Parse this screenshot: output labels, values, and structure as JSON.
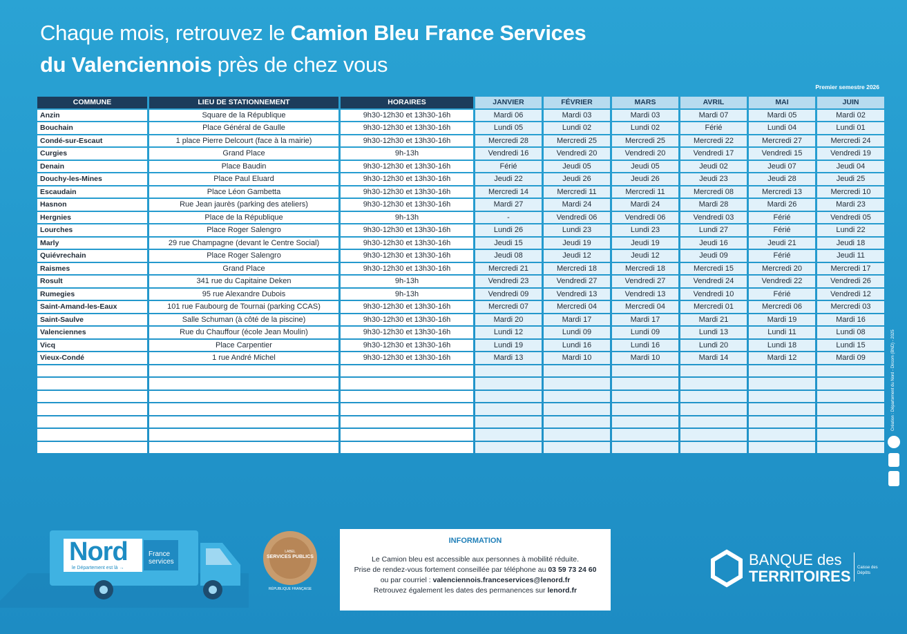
{
  "header": {
    "title_line1_regular": "Chaque mois, retrouvez le",
    "title_line1_bold": "Camion Bleu France Services",
    "title_line2_bold": "du Valenciennois",
    "title_line2_regular": "près de chez vous",
    "period": "Premier semestre 2026"
  },
  "table": {
    "columns": [
      "COMMUNE",
      "LIEU DE STATIONNEMENT",
      "HORAIRES",
      "JANVIER",
      "FÉVRIER",
      "MARS",
      "AVRIL",
      "MAI",
      "JUIN"
    ],
    "rows": [
      [
        "Anzin",
        "Square de la République",
        "9h30-12h30 et 13h30-16h",
        "Mardi 06",
        "Mardi 03",
        "Mardi 03",
        "Mardi 07",
        "Mardi 05",
        "Mardi 02"
      ],
      [
        "Bouchain",
        "Place Général de Gaulle",
        "9h30-12h30 et 13h30-16h",
        "Lundi 05",
        "Lundi 02",
        "Lundi 02",
        "Férié",
        "Lundi 04",
        "Lundi 01"
      ],
      [
        "Condé-sur-Escaut",
        "1 place Pierre Delcourt (face à la mairie)",
        "9h30-12h30 et 13h30-16h",
        "Mercredi 28",
        "Mercredi 25",
        "Mercredi 25",
        "Mercredi 22",
        "Mercredi 27",
        "Mercredi 24"
      ],
      [
        "Curgies",
        "Grand Place",
        "9h-13h",
        "Vendredi 16",
        "Vendredi 20",
        "Vendredi 20",
        "Vendredi 17",
        "Vendredi 15",
        "Vendredi 19"
      ],
      [
        "Denain",
        "Place Baudin",
        "9h30-12h30 et 13h30-16h",
        "Férié",
        "Jeudi 05",
        "Jeudi 05",
        "Jeudi 02",
        "Jeudi 07",
        "Jeudi 04"
      ],
      [
        "Douchy-les-Mines",
        "Place Paul Eluard",
        "9h30-12h30 et 13h30-16h",
        "Jeudi 22",
        "Jeudi 26",
        "Jeudi 26",
        "Jeudi 23",
        "Jeudi 28",
        "Jeudi 25"
      ],
      [
        "Escaudain",
        "Place Léon Gambetta",
        "9h30-12h30 et 13h30-16h",
        "Mercredi 14",
        "Mercredi 11",
        "Mercredi 11",
        "Mercredi 08",
        "Mercredi 13",
        "Mercredi 10"
      ],
      [
        "Hasnon",
        "Rue Jean jaurès (parking des ateliers)",
        "9h30-12h30 et 13h30-16h",
        "Mardi 27",
        "Mardi 24",
        "Mardi 24",
        "Mardi 28",
        "Mardi 26",
        "Mardi 23"
      ],
      [
        "Hergnies",
        "Place de la République",
        "9h-13h",
        "-",
        "Vendredi 06",
        "Vendredi 06",
        "Vendredi 03",
        "Férié",
        "Vendredi 05"
      ],
      [
        "Lourches",
        "Place Roger Salengro",
        "9h30-12h30 et 13h30-16h",
        "Lundi 26",
        "Lundi 23",
        "Lundi 23",
        "Lundi 27",
        "Férié",
        "Lundi 22"
      ],
      [
        "Marly",
        "29 rue Champagne (devant le Centre Social)",
        "9h30-12h30 et 13h30-16h",
        "Jeudi 15",
        "Jeudi 19",
        "Jeudi 19",
        "Jeudi 16",
        "Jeudi 21",
        "Jeudi 18"
      ],
      [
        "Quiévrechain",
        "Place Roger Salengro",
        "9h30-12h30 et 13h30-16h",
        "Jeudi 08",
        "Jeudi 12",
        "Jeudi 12",
        "Jeudi 09",
        "Férié",
        "Jeudi 11"
      ],
      [
        "Raismes",
        "Grand Place",
        "9h30-12h30 et 13h30-16h",
        "Mercredi 21",
        "Mercredi 18",
        "Mercredi 18",
        "Mercredi 15",
        "Mercredi 20",
        "Mercredi 17"
      ],
      [
        "Rosult",
        "341 rue du Capitaine Deken",
        "9h-13h",
        "Vendredi 23",
        "Vendredi 27",
        "Vendredi 27",
        "Vendredi 24",
        "Vendredi 22",
        "Vendredi 26"
      ],
      [
        "Rumegies",
        "95 rue Alexandre Dubois",
        "9h-13h",
        "Vendredi 09",
        "Vendredi 13",
        "Vendredi 13",
        "Vendredi 10",
        "Férié",
        "Vendredi 12"
      ],
      [
        "Saint-Amand-les-Eaux",
        "101 rue Faubourg de Tournai (parking CCAS)",
        "9h30-12h30 et 13h30-16h",
        "Mercredi 07",
        "Mercredi 04",
        "Mercredi 04",
        "Mercredi 01",
        "Mercredi 06",
        "Mercredi 03"
      ],
      [
        "Saint-Saulve",
        "Salle Schuman (à côté de la piscine)",
        "9h30-12h30 et 13h30-16h",
        "Mardi 20",
        "Mardi 17",
        "Mardi 17",
        "Mardi 21",
        "Mardi 19",
        "Mardi 16"
      ],
      [
        "Valenciennes",
        "Rue du Chauffour (école Jean Moulin)",
        "9h30-12h30 et 13h30-16h",
        "Lundi 12",
        "Lundi 09",
        "Lundi 09",
        "Lundi 13",
        "Lundi 11",
        "Lundi 08"
      ],
      [
        "Vicq",
        "Place Carpentier",
        "9h30-12h30 et 13h30-16h",
        "Lundi 19",
        "Lundi 16",
        "Lundi 16",
        "Lundi 20",
        "Lundi 18",
        "Lundi 15"
      ],
      [
        "Vieux-Condé",
        "1 rue André Michel",
        "9h30-12h30 et 13h30-16h",
        "Mardi 13",
        "Mardi 10",
        "Mardi 10",
        "Mardi 14",
        "Mardi 12",
        "Mardi 09"
      ]
    ]
  },
  "information": {
    "heading": "INFORMATION",
    "line1": "Le Camion bleu est accessible aux personnes à mobilité réduite.",
    "line2_regular": "Prise de rendez-vous fortement conseillée par téléphone au",
    "line2_bold": "03 59 73 24 60",
    "line3_regular": "ou par courriel :",
    "line3_bold": "valenciennois.franceservices@lenord.fr",
    "line4_regular": "Retrouvez également les dates des permanences sur",
    "line4_bold": "lenord.fr"
  },
  "logos": {
    "nord": "Nord",
    "nord_tagline": "le Département est là →",
    "france_services": "France services",
    "label_top": "LABEL",
    "label_main": "SERVICES PUBLICS",
    "republique": "RÉPUBLIQUE FRANÇAISE",
    "banque_line1": "BANQUE des",
    "banque_line2": "TERRITOIRES",
    "caisse": "Caisse des Dépôts"
  },
  "credit": "Création : Département du Nord - Dircom (BND) - 2025"
}
